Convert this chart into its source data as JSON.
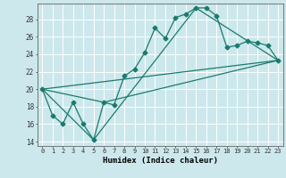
{
  "title": "",
  "xlabel": "Humidex (Indice chaleur)",
  "bg_color": "#cce8ec",
  "grid_color": "#ffffff",
  "line_color": "#1a7a6e",
  "xlim": [
    -0.5,
    23.5
  ],
  "ylim": [
    13.5,
    29.8
  ],
  "xticks": [
    0,
    1,
    2,
    3,
    4,
    5,
    6,
    7,
    8,
    9,
    10,
    11,
    12,
    13,
    14,
    15,
    16,
    17,
    18,
    19,
    20,
    21,
    22,
    23
  ],
  "yticks": [
    14,
    16,
    18,
    20,
    22,
    24,
    26,
    28
  ],
  "line1_x": [
    0,
    1,
    2,
    3,
    4,
    5,
    6,
    7,
    8,
    9,
    10,
    11,
    12,
    13,
    14,
    15,
    16,
    17,
    18,
    19,
    20,
    21,
    22,
    23
  ],
  "line1_y": [
    20,
    17,
    16,
    18.5,
    16,
    14.2,
    18.5,
    18.2,
    21.5,
    22.3,
    24.2,
    27,
    25.8,
    28.2,
    28.6,
    29.3,
    29.3,
    28.4,
    24.8,
    25.0,
    25.5,
    25.3,
    25.0,
    23.3
  ],
  "line2_x": [
    0,
    23
  ],
  "line2_y": [
    20,
    23.3
  ],
  "line3_x": [
    0,
    6,
    23
  ],
  "line3_y": [
    20,
    18.5,
    23.3
  ],
  "line4_x": [
    0,
    5,
    15,
    23
  ],
  "line4_y": [
    20,
    14.2,
    29.3,
    23.3
  ]
}
